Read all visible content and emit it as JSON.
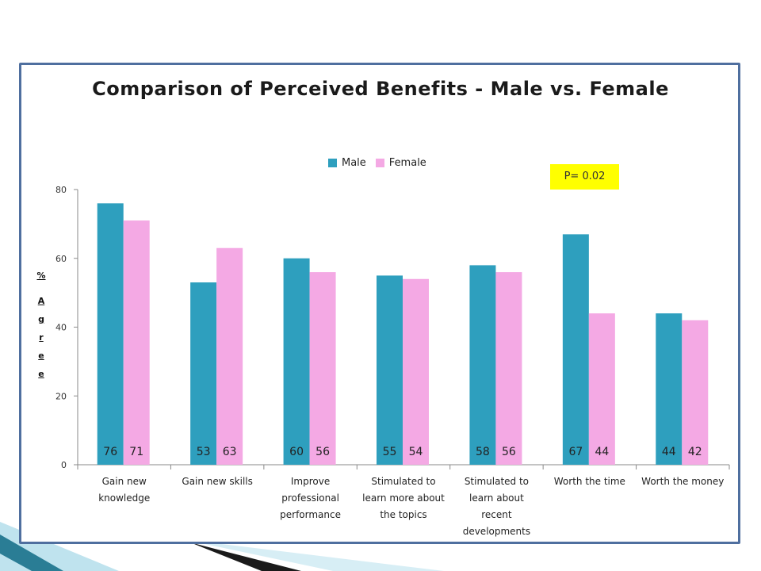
{
  "chart_data": {
    "type": "bar",
    "title": "Comparison of Perceived Benefits - Male vs. Female",
    "ylabel": "% Agree",
    "ylim": [
      0,
      80
    ],
    "yticks": [
      0,
      20,
      40,
      60,
      80
    ],
    "legend": "top-center",
    "grid": false,
    "categories": [
      [
        "Gain new",
        "knowledge"
      ],
      [
        "Gain new skills"
      ],
      [
        "Improve",
        "professional",
        "performance"
      ],
      [
        "Stimulated to",
        "learn more about",
        "the topics"
      ],
      [
        "Stimulated to",
        "learn about",
        "recent",
        "developments"
      ],
      [
        "Worth the time"
      ],
      [
        "Worth the money"
      ]
    ],
    "series": [
      {
        "name": "Male",
        "color": "#2e9fbe",
        "values": [
          76,
          53,
          60,
          55,
          58,
          67,
          44
        ]
      },
      {
        "name": "Female",
        "color": "#f4a9e4",
        "values": [
          71,
          63,
          56,
          54,
          56,
          44,
          42
        ]
      }
    ],
    "annotation": "P= 0.02"
  }
}
